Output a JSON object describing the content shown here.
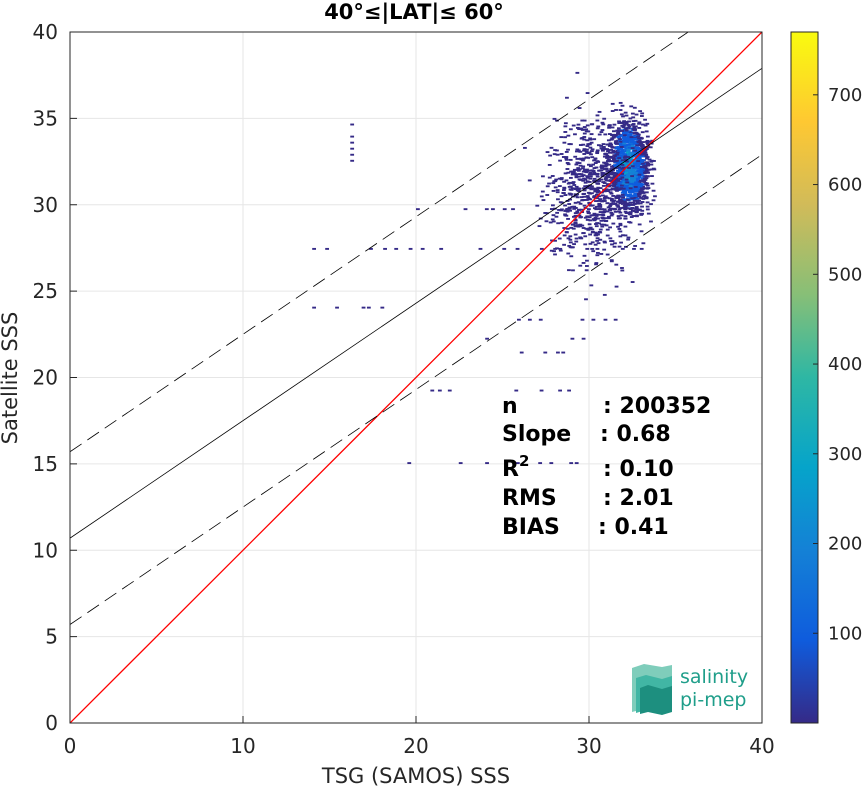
{
  "chart_data": {
    "type": "heatmap",
    "title": "40°≤|LAT|≤ 60°",
    "xlabel": "TSG (SAMOS) SSS",
    "ylabel": "Satellite SSS",
    "xlim": [
      0,
      40
    ],
    "ylim": [
      0,
      40
    ],
    "xticks": [
      0,
      10,
      20,
      30,
      40
    ],
    "yticks": [
      0,
      5,
      10,
      15,
      20,
      25,
      30,
      35,
      40
    ],
    "grid": true,
    "colorbar": {
      "range": [
        0,
        770
      ],
      "ticks": [
        100,
        200,
        300,
        400,
        500,
        600,
        700
      ],
      "colormap": "parula"
    },
    "density_core": {
      "x_center": 32.2,
      "y_center": 32.3,
      "peak_count": 300
    },
    "lines": [
      {
        "kind": "identity",
        "slope": 1.0,
        "intercept": 0.0,
        "color": "#ff0000",
        "style": "solid"
      },
      {
        "kind": "regression",
        "slope": 0.68,
        "intercept": 10.7,
        "color": "#000000",
        "style": "solid"
      },
      {
        "kind": "regression_upper",
        "slope": 0.68,
        "intercept": 15.7,
        "color": "#000000",
        "style": "dashed"
      },
      {
        "kind": "regression_lower",
        "slope": 0.68,
        "intercept": 5.7,
        "color": "#000000",
        "style": "dashed"
      }
    ],
    "stats": [
      {
        "label": "n",
        "value": ": 200352"
      },
      {
        "label": "Slope",
        "value": ": 0.68"
      },
      {
        "label": "R",
        "sup": "2",
        "value": ": 0.10"
      },
      {
        "label": "RMS",
        "value": ": 2.01"
      },
      {
        "label": "BIAS",
        "value": ": 0.41"
      }
    ],
    "sparse_rows": [
      {
        "y": 27.5,
        "x_from": 14,
        "x_to": 34
      },
      {
        "y": 29.8,
        "x_from": 20,
        "x_to": 33
      },
      {
        "y": 24.1,
        "x_from": 14,
        "x_to": 18
      },
      {
        "y": 19.3,
        "x_from": 20,
        "x_to": 31
      },
      {
        "y": 15.1,
        "x_from": 19.5,
        "x_to": 29.5
      },
      {
        "y": 22.3,
        "x_from": 24,
        "x_to": 30
      },
      {
        "y": 21.5,
        "x_from": 26,
        "x_to": 29
      },
      {
        "y": 23.4,
        "x_from": 25,
        "x_to": 32
      }
    ],
    "vertical_streak": {
      "x": 16.2,
      "y_from": 31.9,
      "y_to": 35.2
    }
  },
  "logo": {
    "line1": "salinity",
    "line2": "pi-mep"
  },
  "colors": {
    "identity": "#ff0000",
    "fit": "#000000",
    "logo": "#1f9e8a"
  }
}
